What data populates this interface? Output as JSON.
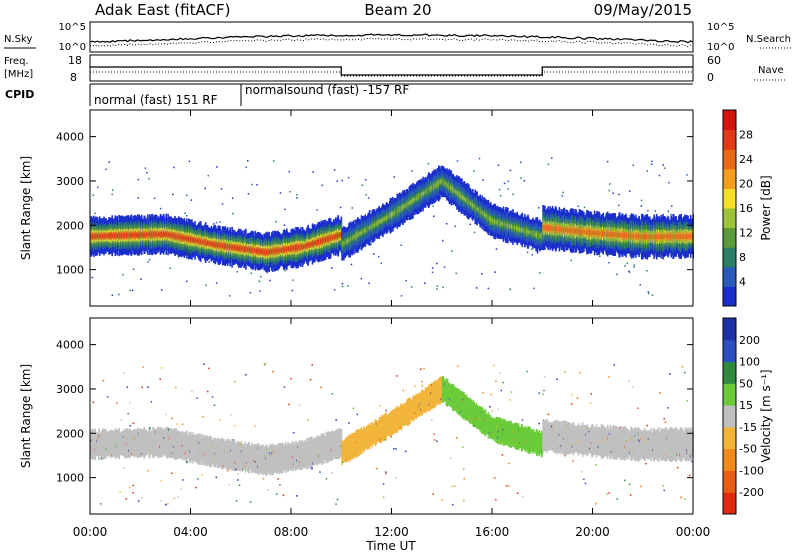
{
  "header": {
    "station": "Adak East (fitACF)",
    "beam": "Beam 20",
    "date": "09/May/2015"
  },
  "status_panels": {
    "nsky_label": "N.Sky",
    "nsearch_label": "N.Search",
    "noise_ticks_left": [
      "10^5",
      "10^0"
    ],
    "noise_ticks_right": [
      "10^5",
      "10^0"
    ],
    "freq_label_line1": "Freq.",
    "freq_label_line2": "[MHz]",
    "freq_ticks": [
      "18",
      "8"
    ],
    "nave_label": "Nave",
    "nave_ticks": [
      "60",
      "0"
    ],
    "cpid_label": "CPID",
    "cpid_segments": [
      {
        "text": "normal (fast) 151 RF",
        "start_hour": 0,
        "end_hour": 6
      },
      {
        "text": "normalsound (fast) -157 RF",
        "start_hour": 6,
        "end_hour": 24
      }
    ]
  },
  "chart_data": [
    {
      "type": "heatmap",
      "parameter": "Power",
      "x_ticks": [
        "00:00",
        "04:00",
        "08:00",
        "12:00",
        "16:00",
        "20:00",
        "00:00"
      ],
      "xlim_hours": [
        0,
        24
      ],
      "xlabel": "Time UT",
      "ylabel": "Slant Range [km]",
      "ylim_km": [
        180,
        4600
      ],
      "y_ticks": [
        1000,
        2000,
        3000,
        4000
      ],
      "colorbar": {
        "label": "Power [dB]",
        "ticks": [
          "4",
          "8",
          "12",
          "16",
          "20",
          "24",
          "28"
        ],
        "range": [
          0,
          30
        ],
        "colors": [
          "#1a2ecc",
          "#2a5ab8",
          "#2a7f66",
          "#5a9a3a",
          "#9cc43a",
          "#f2e02a",
          "#f29e1e",
          "#ea6a1a",
          "#e03a1a",
          "#d4140e"
        ]
      },
      "bands": [
        {
          "t": [
            0,
            3,
            5,
            7,
            8.5,
            10
          ],
          "center_km": [
            1750,
            1800,
            1560,
            1390,
            1520,
            1790
          ],
          "width_km": 300,
          "power_db": 24
        },
        {
          "t": [
            10,
            12,
            14,
            16,
            18
          ],
          "center_km": [
            1570,
            2240,
            3000,
            2100,
            1750
          ],
          "width_km": 260,
          "power_db": 11
        },
        {
          "t": [
            18,
            20,
            22,
            24
          ],
          "center_km": [
            1950,
            1830,
            1740,
            1750
          ],
          "width_km": 330,
          "power_db": 21
        }
      ],
      "time_gaps_hours": [
        6,
        10,
        18
      ]
    },
    {
      "type": "heatmap",
      "parameter": "Velocity",
      "x_ticks": [
        "00:00",
        "04:00",
        "08:00",
        "12:00",
        "16:00",
        "20:00",
        "00:00"
      ],
      "xlim_hours": [
        0,
        24
      ],
      "xlabel": "Time UT",
      "ylabel": "Slant Range [km]",
      "ylim_km": [
        180,
        4600
      ],
      "y_ticks": [
        1000,
        2000,
        3000,
        4000
      ],
      "colorbar": {
        "label": "Velocity [m s⁻¹]",
        "ticks": [
          "200",
          "100",
          "50",
          "15",
          "-15",
          "-50",
          "-100",
          "-200"
        ],
        "range": [
          -250,
          250
        ],
        "colors": [
          "#1c2fa6",
          "#2a4fc0",
          "#2f8a3e",
          "#6bcb3a",
          "#c0c0c0",
          "#f2b53a",
          "#f08a1c",
          "#e85e14",
          "#e02a10"
        ]
      },
      "bands": [
        {
          "t": [
            0,
            3,
            5,
            7,
            8.5,
            10
          ],
          "center_km": [
            1750,
            1800,
            1560,
            1390,
            1520,
            1790
          ],
          "width_km": 300,
          "velocity": 0
        },
        {
          "t": [
            10,
            12,
            14
          ],
          "center_km": [
            1570,
            2240,
            3000
          ],
          "width_km": 260,
          "velocity": -60
        },
        {
          "t": [
            14,
            16,
            18
          ],
          "center_km": [
            3000,
            2100,
            1750
          ],
          "width_km": 260,
          "velocity": 40
        },
        {
          "t": [
            18,
            20,
            22,
            24
          ],
          "center_km": [
            1950,
            1830,
            1740,
            1750
          ],
          "width_km": 330,
          "velocity": 0
        }
      ],
      "time_gaps_hours": [
        6,
        10,
        18
      ]
    }
  ]
}
